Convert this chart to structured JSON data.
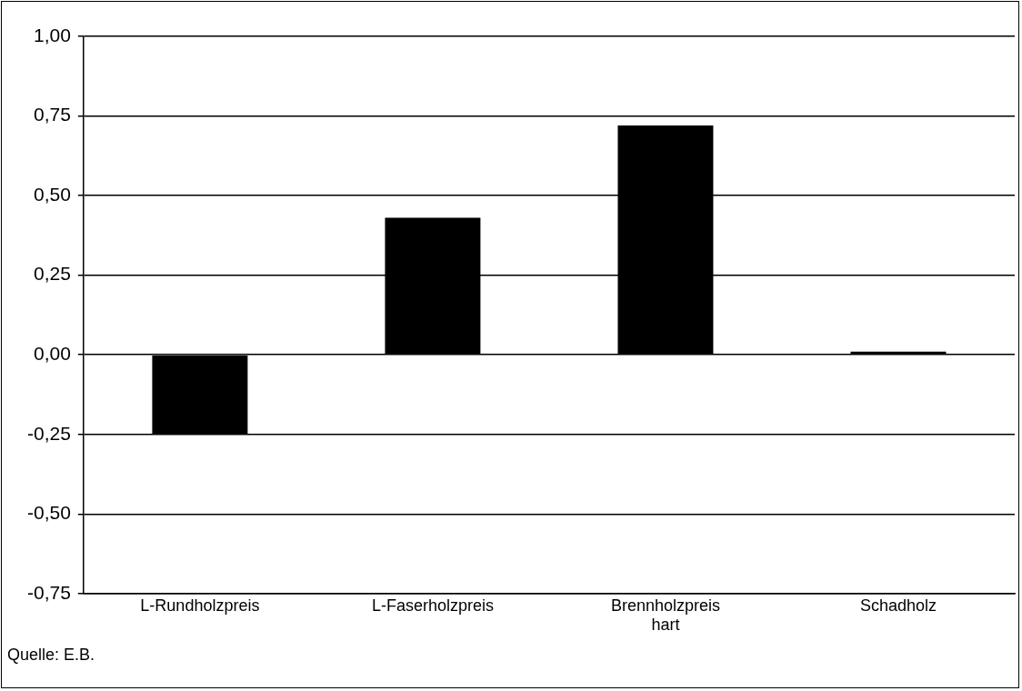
{
  "chart_data": {
    "type": "bar",
    "categories": [
      "L-Rundholzpreis",
      "L-Faserholzpreis",
      "Brennholzpreis hart",
      "Schadholz"
    ],
    "values": [
      -0.25,
      0.43,
      0.72,
      0.01
    ],
    "color": "#000000",
    "ylim": [
      -0.75,
      1.0
    ],
    "yticks": [
      {
        "value": -0.75,
        "label": "-0,75"
      },
      {
        "value": -0.5,
        "label": "-0,50"
      },
      {
        "value": -0.25,
        "label": "-0,25"
      },
      {
        "value": 0,
        "label": "0,00"
      },
      {
        "value": 0.25,
        "label": "0,25"
      },
      {
        "value": 0.5,
        "label": "0,50"
      },
      {
        "value": 0.75,
        "label": "0,75"
      },
      {
        "value": 1.0,
        "label": "1,00"
      }
    ],
    "grid": "y",
    "legend": false,
    "annotations": [
      "Quelle: E.B."
    ]
  }
}
